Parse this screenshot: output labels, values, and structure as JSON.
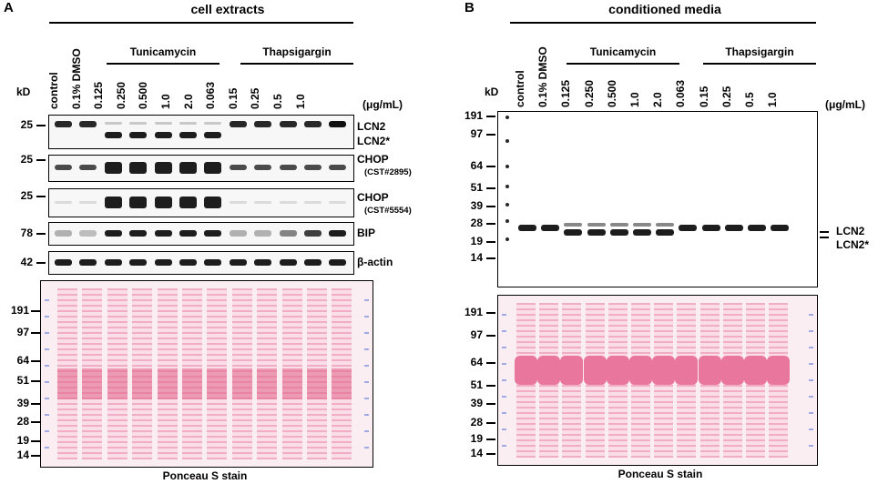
{
  "panelA": {
    "letter": "A",
    "title": "cell extracts",
    "lanes": [
      "control",
      "0.1% DMSO",
      "0.125",
      "0.250",
      "0.500",
      "1.0",
      "2.0",
      "0.063",
      "0.15",
      "0.25",
      "0.5",
      "1.0"
    ],
    "groups": {
      "tunicamycin": "Tunicamycin",
      "thapsigargin": "Thapsigargin"
    },
    "unit": "(μg/mL)",
    "kd_label": "kD",
    "blots": [
      {
        "mw": "25",
        "label": "LCN2",
        "label2": "LCN2*",
        "sub": ""
      },
      {
        "mw": "25",
        "label": "CHOP",
        "label2": "",
        "sub": "(CST#2895)"
      },
      {
        "mw": "25",
        "label": "CHOP",
        "label2": "",
        "sub": "(CST#5554)"
      },
      {
        "mw": "78",
        "label": "BIP",
        "label2": "",
        "sub": ""
      },
      {
        "mw": "42",
        "label": "β-actin",
        "label2": "",
        "sub": ""
      }
    ],
    "ponceau_mw": [
      "191",
      "97",
      "64",
      "51",
      "39",
      "28",
      "19",
      "14"
    ],
    "caption": "Ponceau S stain"
  },
  "panelB": {
    "letter": "B",
    "title": "conditioned media",
    "lanes": [
      "control",
      "0.1% DMSO",
      "0.125",
      "0.250",
      "0.500",
      "1.0",
      "2.0",
      "0.063",
      "0.15",
      "0.25",
      "0.5",
      "1.0"
    ],
    "groups": {
      "tunicamycin": "Tunicamycin",
      "thapsigargin": "Thapsigargin"
    },
    "unit": "(μg/mL)",
    "kd_label": "kD",
    "blot_mw": [
      "191",
      "97",
      "64",
      "51",
      "39",
      "28",
      "19",
      "14"
    ],
    "band_labels": {
      "lcn2": "LCN2",
      "lcn2_star": "LCN2*"
    },
    "ponceau_mw": [
      "191",
      "97",
      "64",
      "51",
      "39",
      "28",
      "19",
      "14"
    ],
    "caption": "Ponceau S stain"
  },
  "colors": {
    "ink": "#000000",
    "ponceau": "#e88aa8",
    "membrane": "#fbeef3"
  }
}
